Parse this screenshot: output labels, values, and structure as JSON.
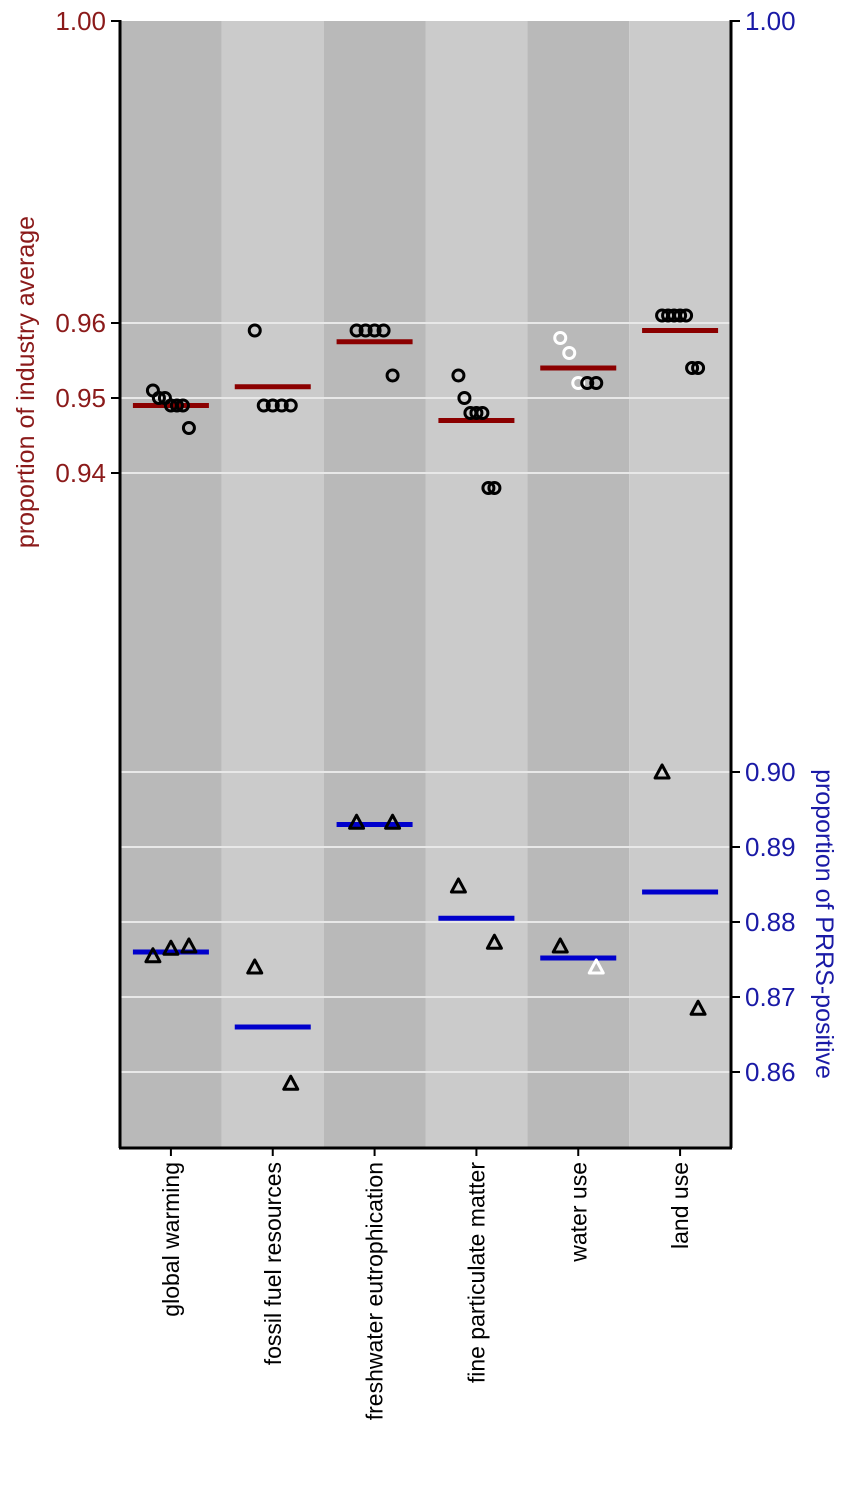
{
  "chart_data": {
    "type": "scatter",
    "title": "",
    "categories": [
      "global warming",
      "fossil fuel resources",
      "freshwater eutrophication",
      "fine particulate matter",
      "water use",
      "land use"
    ],
    "left_axis": {
      "label": "proportion of industry average",
      "ticks": [
        "0.94",
        "0.95",
        "0.96",
        "1.00"
      ],
      "tick_values": [
        0.94,
        0.95,
        0.96,
        1.0
      ],
      "color": "#8b1a1a"
    },
    "right_axis": {
      "label": "proportion of PRRS-positive",
      "ticks": [
        "0.86",
        "0.87",
        "0.88",
        "0.89",
        "0.90",
        "1.00"
      ],
      "tick_values": [
        0.86,
        0.87,
        0.88,
        0.89,
        0.9,
        1.0
      ],
      "color": "#1a1aa6"
    },
    "series": [
      {
        "name": "",
        "axis": "left",
        "marker": "circle",
        "points": [
          [
            0,
            0.951,
            "black"
          ],
          [
            0,
            0.95,
            "black"
          ],
          [
            0,
            0.95,
            "black"
          ],
          [
            0,
            0.949,
            "black"
          ],
          [
            0,
            0.949,
            "black"
          ],
          [
            0,
            0.949,
            "black"
          ],
          [
            0,
            0.946,
            "black"
          ],
          [
            1,
            0.959,
            "black"
          ],
          [
            1,
            0.949,
            "black"
          ],
          [
            1,
            0.949,
            "black"
          ],
          [
            1,
            0.949,
            "black"
          ],
          [
            1,
            0.949,
            "black"
          ],
          [
            2,
            0.959,
            "black"
          ],
          [
            2,
            0.959,
            "black"
          ],
          [
            2,
            0.959,
            "black"
          ],
          [
            2,
            0.959,
            "black"
          ],
          [
            2,
            0.953,
            "black"
          ],
          [
            3,
            0.953,
            "black"
          ],
          [
            3,
            0.95,
            "black"
          ],
          [
            3,
            0.948,
            "black"
          ],
          [
            3,
            0.948,
            "black"
          ],
          [
            3,
            0.948,
            "black"
          ],
          [
            3,
            0.938,
            "black"
          ],
          [
            3,
            0.938,
            "black"
          ],
          [
            4,
            0.958,
            "white"
          ],
          [
            4,
            0.956,
            "white"
          ],
          [
            4,
            0.952,
            "white"
          ],
          [
            4,
            0.952,
            "black"
          ],
          [
            4,
            0.952,
            "black"
          ],
          [
            5,
            0.961,
            "black"
          ],
          [
            5,
            0.961,
            "black"
          ],
          [
            5,
            0.961,
            "black"
          ],
          [
            5,
            0.961,
            "black"
          ],
          [
            5,
            0.961,
            "black"
          ],
          [
            5,
            0.954,
            "black"
          ],
          [
            5,
            0.954,
            "black"
          ]
        ],
        "means": [
          0.949,
          0.9515,
          0.9575,
          0.947,
          0.954,
          0.959
        ],
        "mean_color": "#8b0000"
      },
      {
        "name": "",
        "axis": "right",
        "marker": "triangle",
        "points": [
          [
            0,
            0.8755,
            "black"
          ],
          [
            0,
            0.8765,
            "black"
          ],
          [
            0,
            0.8768,
            "black"
          ],
          [
            1,
            0.874,
            "black"
          ],
          [
            1,
            0.8585,
            "black"
          ],
          [
            2,
            0.8933,
            "black"
          ],
          [
            2,
            0.8933,
            "black"
          ],
          [
            3,
            0.8848,
            "black"
          ],
          [
            3,
            0.8773,
            "black"
          ],
          [
            4,
            0.8768,
            "black"
          ],
          [
            4,
            0.874,
            "white"
          ],
          [
            5,
            0.9,
            "black"
          ],
          [
            5,
            0.8685,
            "black"
          ]
        ],
        "means": [
          0.876,
          0.866,
          0.893,
          0.8805,
          0.8752,
          0.884
        ],
        "mean_color": "#0000cc"
      }
    ],
    "grid": true
  }
}
